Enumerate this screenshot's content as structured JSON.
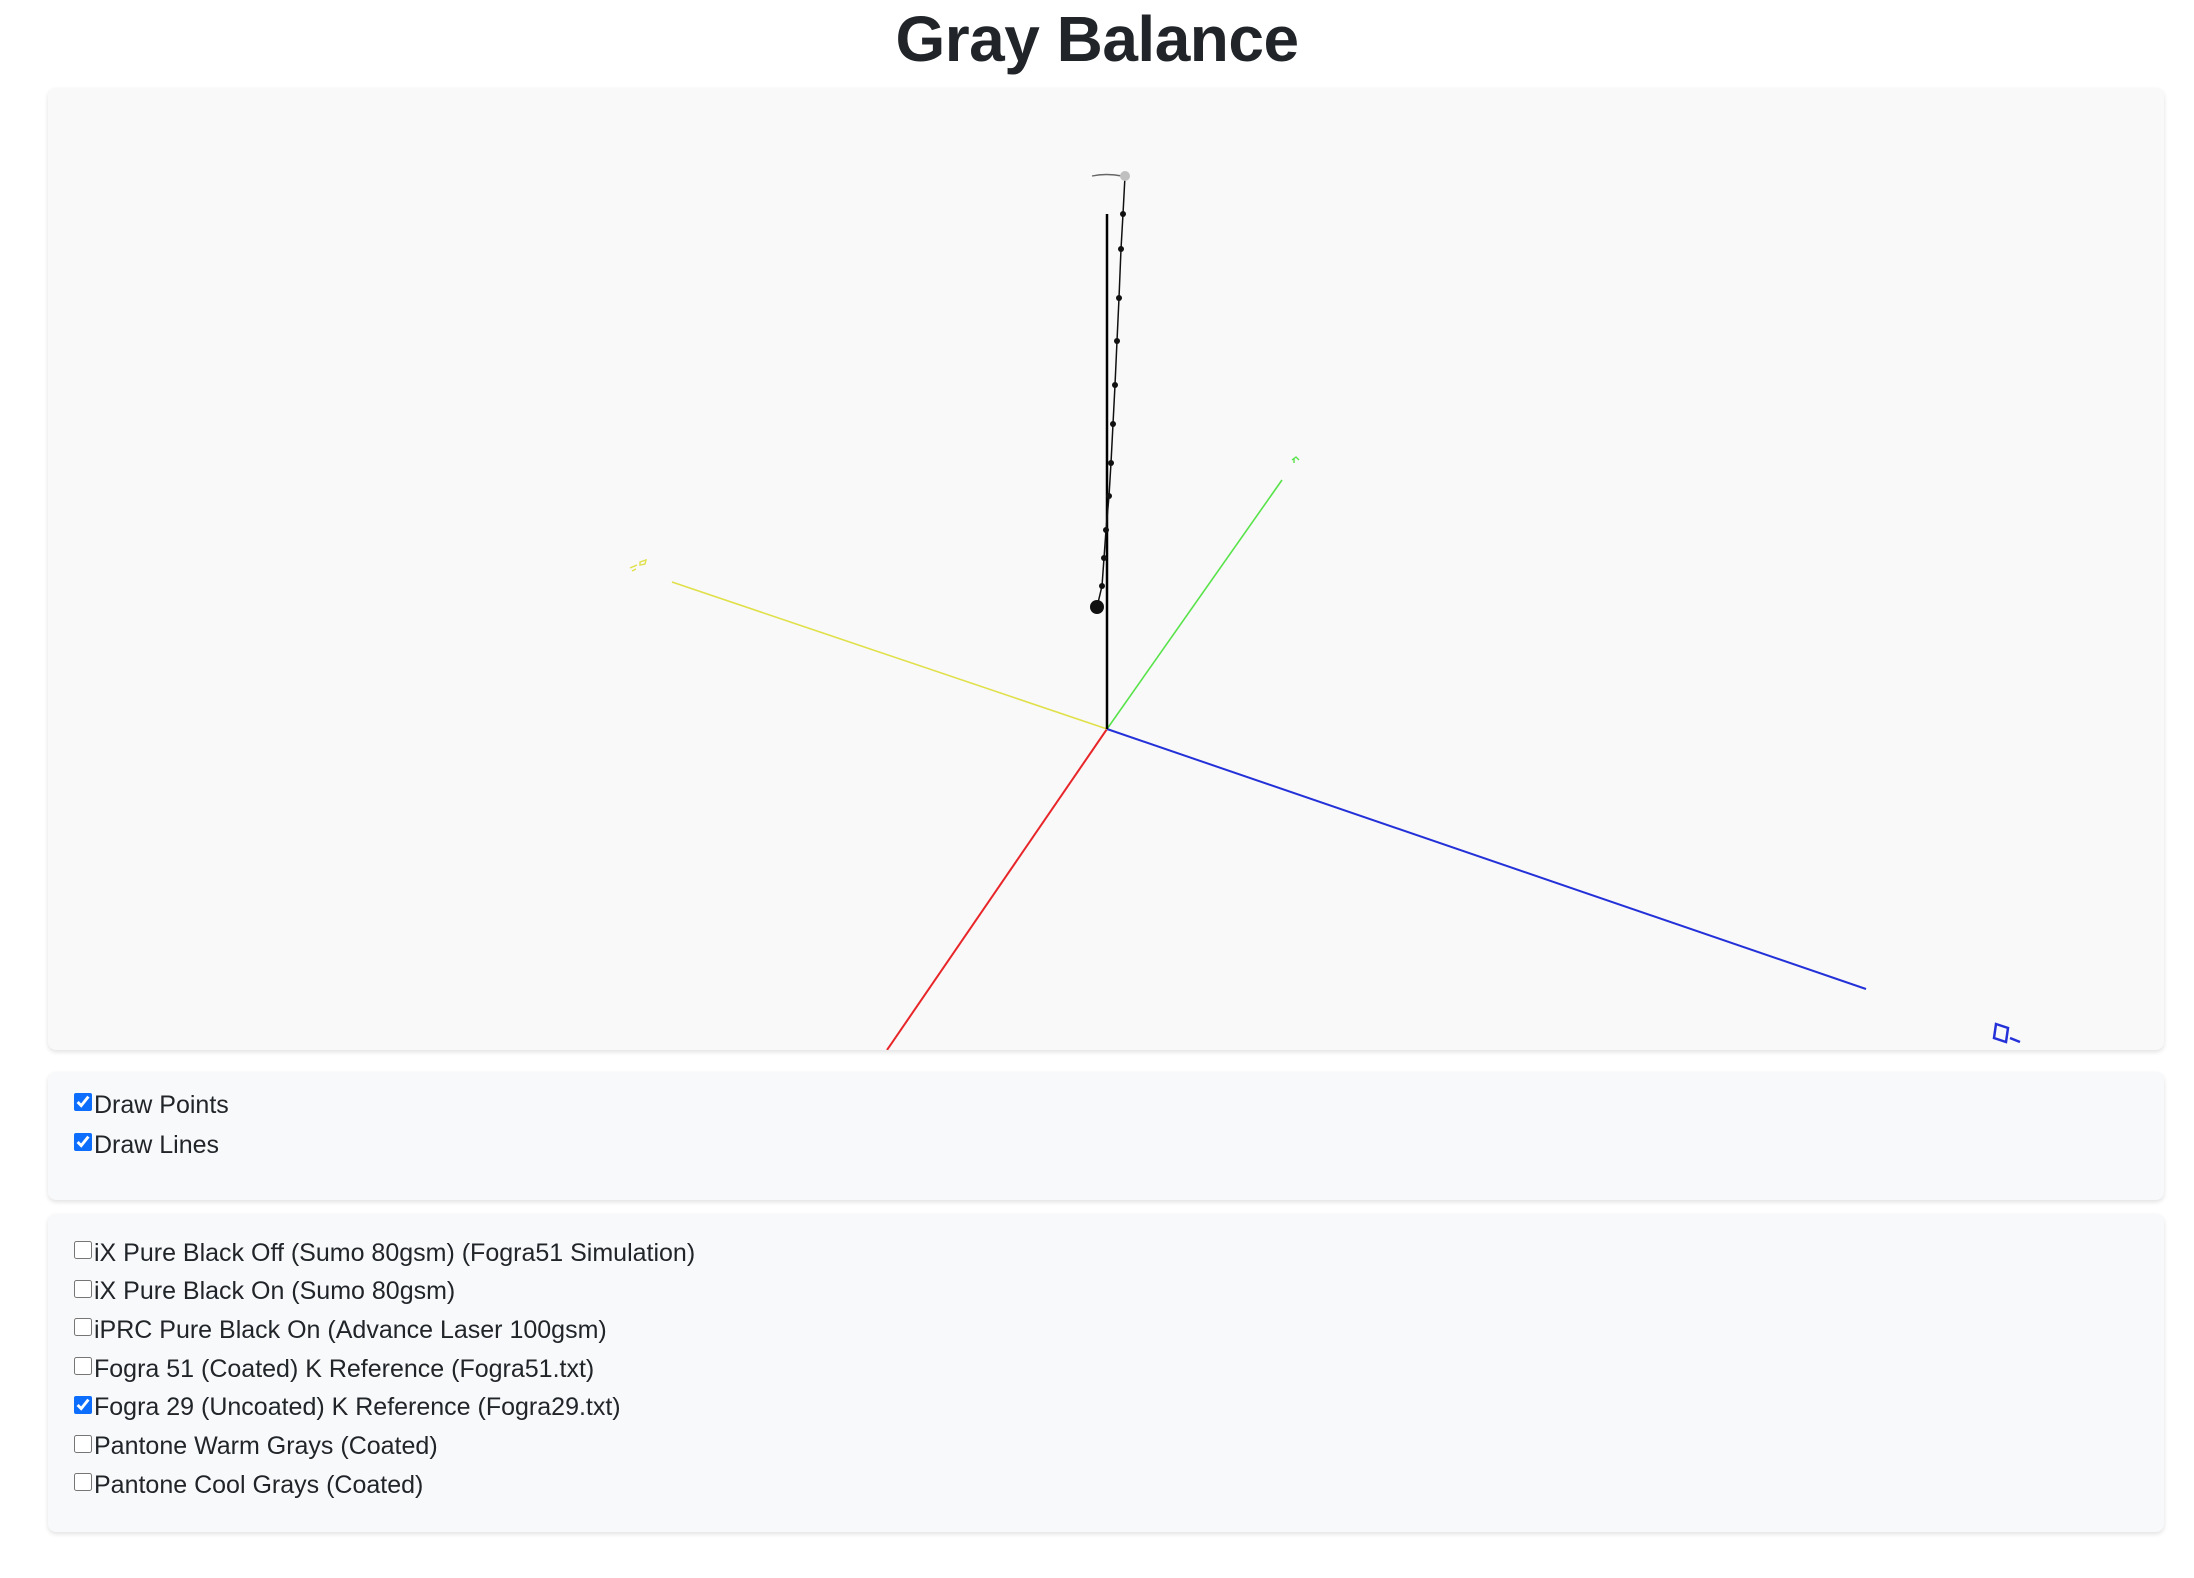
{
  "page": {
    "title": "Gray Balance"
  },
  "scene": {
    "axes": [
      {
        "id": "red-axis",
        "color": "#e8262a"
      },
      {
        "id": "green-axis",
        "color": "#58e34a"
      },
      {
        "id": "blue-axis",
        "color": "#2431d8"
      },
      {
        "id": "yellow-axis",
        "color": "#e0e04a"
      },
      {
        "id": "lightness-axis",
        "color": "#000000"
      }
    ],
    "gray_curve_color": "#111111",
    "highlight_point_color": "#c0c0c0"
  },
  "options": [
    {
      "label": "Draw Points",
      "checked": true
    },
    {
      "label": "Draw Lines",
      "checked": true
    }
  ],
  "datasets": [
    {
      "label": "iX Pure Black Off (Sumo 80gsm) (Fogra51 Simulation)",
      "checked": false
    },
    {
      "label": "iX Pure Black On (Sumo 80gsm)",
      "checked": false
    },
    {
      "label": "iPRC Pure Black On (Advance Laser 100gsm)",
      "checked": false
    },
    {
      "label": "Fogra 51 (Coated) K Reference (Fogra51.txt)",
      "checked": false
    },
    {
      "label": "Fogra 29 (Uncoated) K Reference (Fogra29.txt)",
      "checked": true
    },
    {
      "label": "Pantone Warm Grays (Coated)",
      "checked": false
    },
    {
      "label": "Pantone Cool Grays (Coated)",
      "checked": false
    }
  ]
}
